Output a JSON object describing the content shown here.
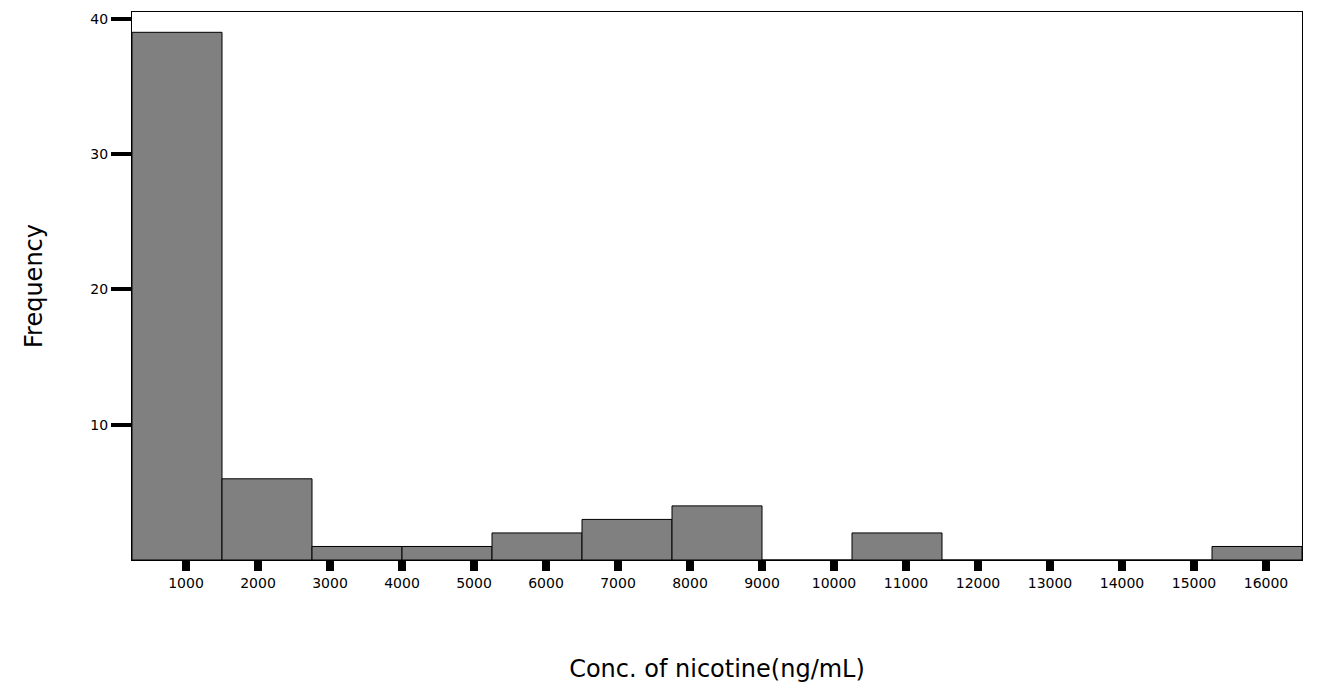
{
  "chart_data": {
    "type": "histogram",
    "x_label": "Conc. of nicotine(ng/mL)",
    "y_label": "Frequency",
    "bins": [
      250,
      1500,
      2750,
      4000,
      5250,
      6500,
      7750,
      9000,
      10250,
      11500,
      12750,
      14000,
      15250,
      16500
    ],
    "counts": [
      39,
      6,
      1,
      1,
      2,
      3,
      4,
      0,
      2,
      0,
      0,
      0,
      1
    ],
    "color": "#808080",
    "xlim": [
      250,
      16500
    ],
    "ylim": [
      0,
      40.5
    ],
    "xticks": [
      1000,
      2000,
      3000,
      4000,
      5000,
      6000,
      7000,
      8000,
      9000,
      10000,
      11000,
      12000,
      13000,
      14000,
      15000,
      16000
    ],
    "yticks": [
      10,
      20,
      30,
      40
    ],
    "grid": false
  }
}
